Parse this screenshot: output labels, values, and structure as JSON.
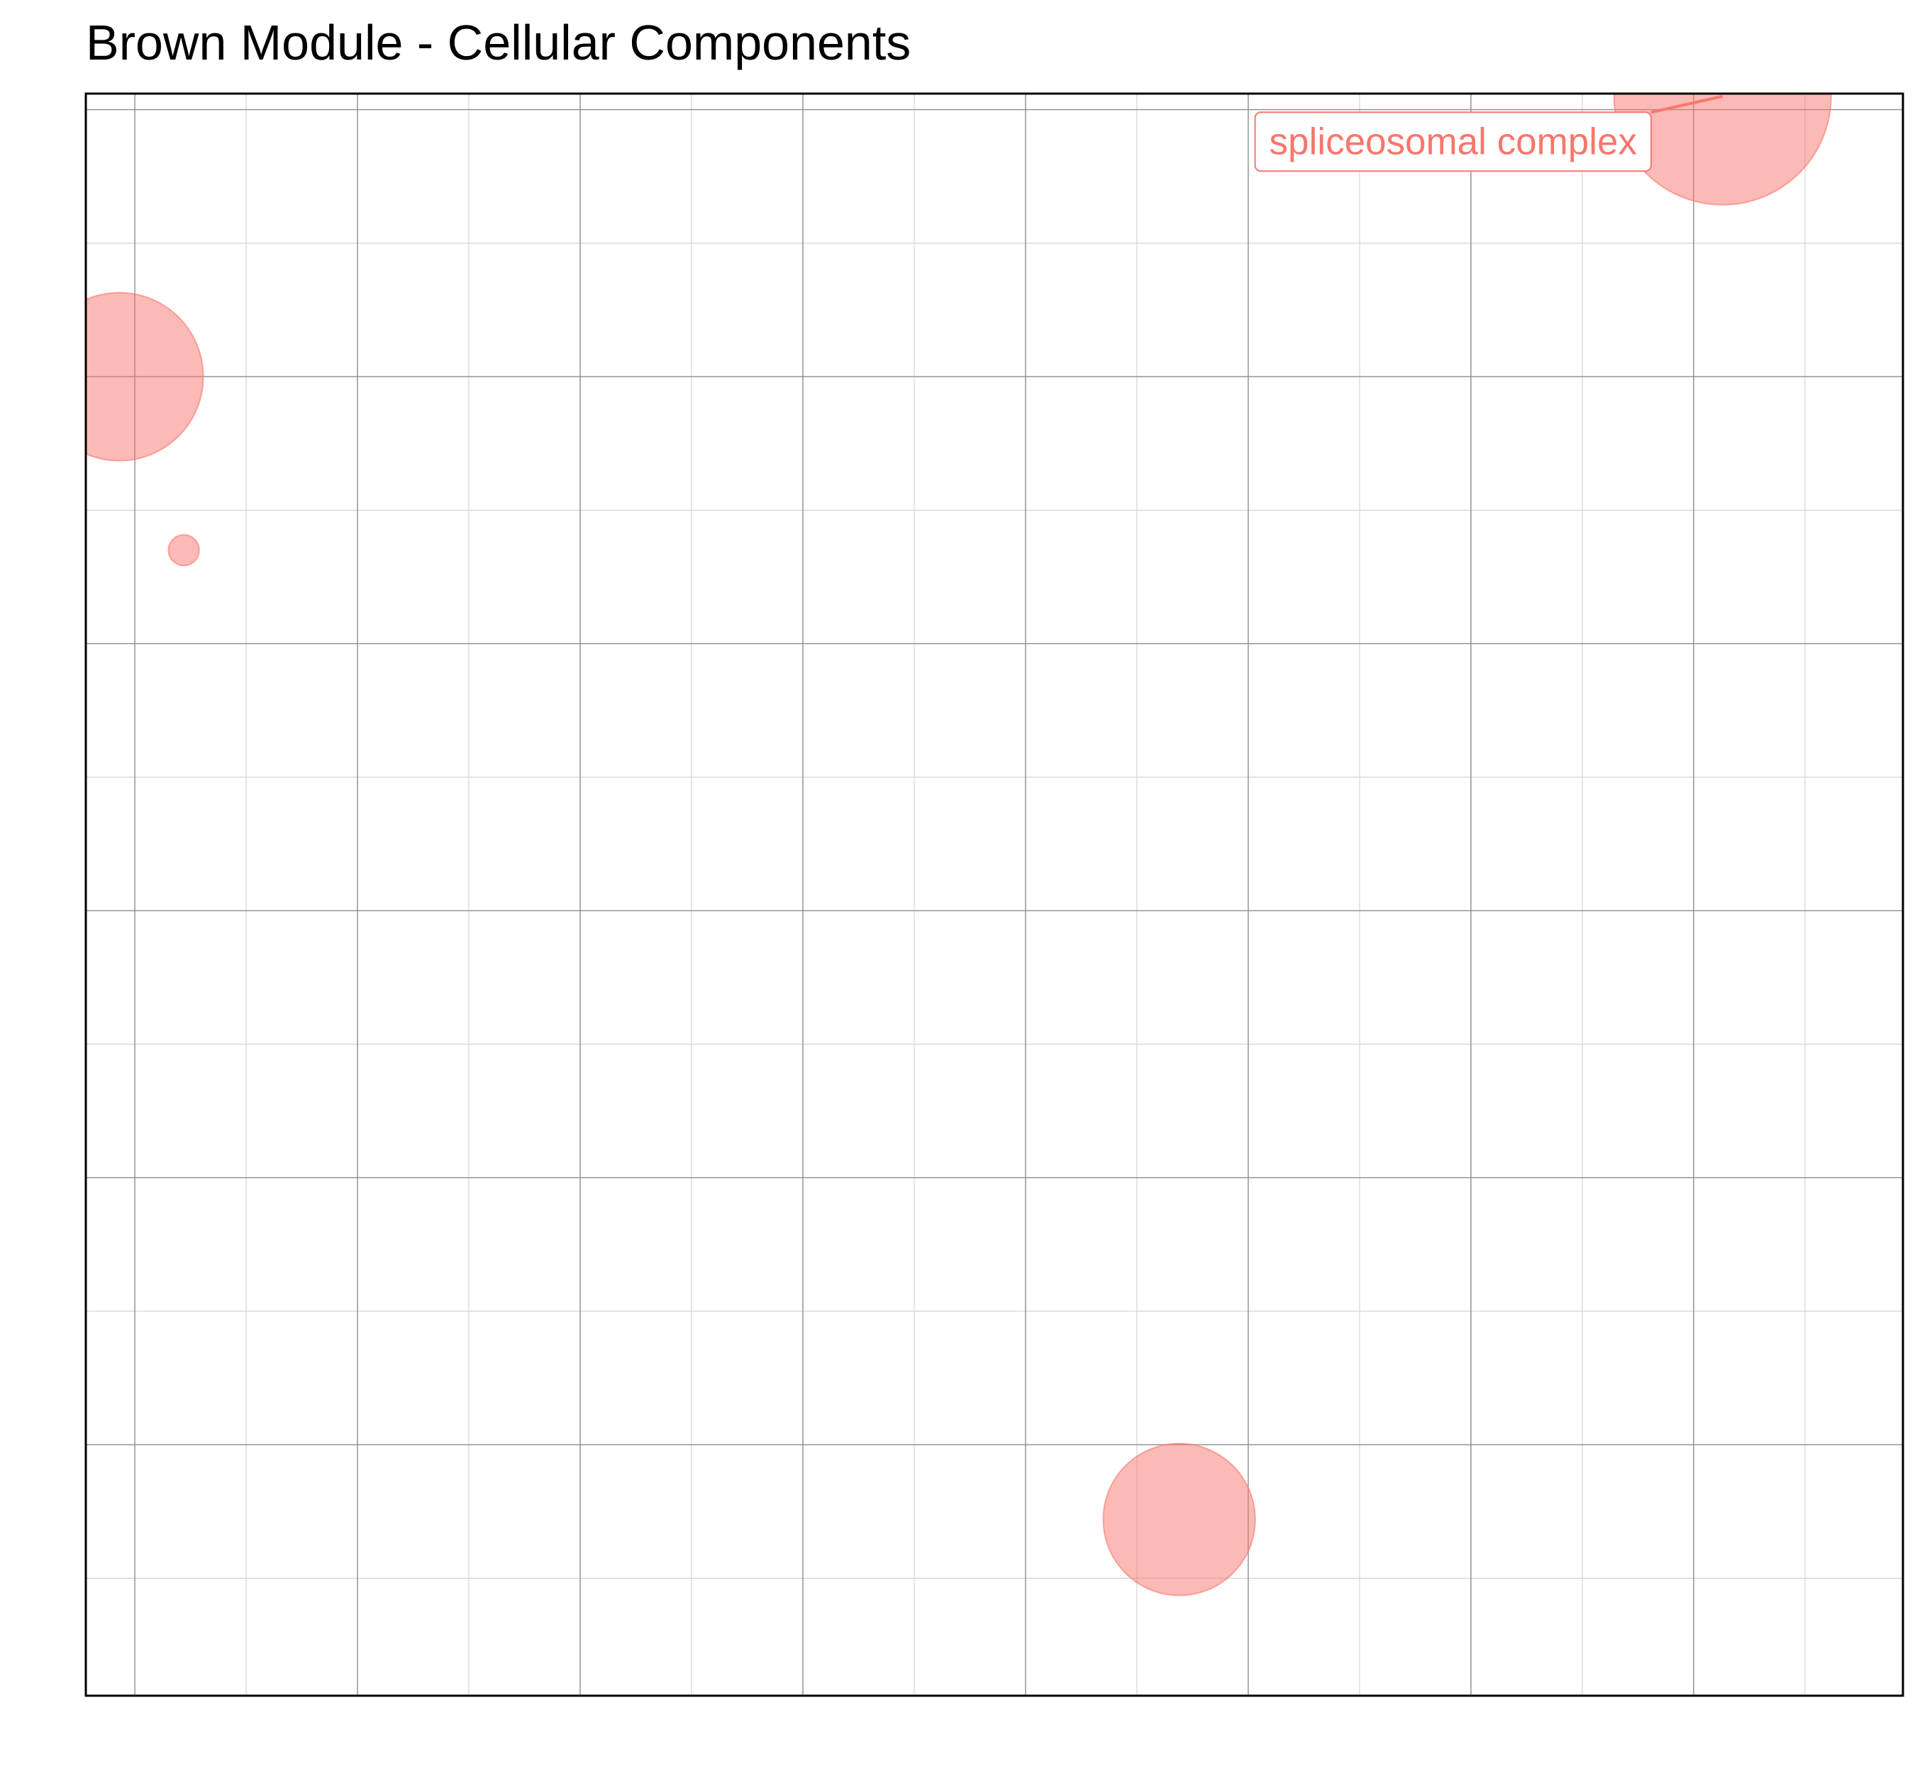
{
  "chart_data": {
    "type": "scatter",
    "title": "Brown Module - Cellular Components",
    "xlabel": "",
    "ylabel": "",
    "xlim": [
      -0.22,
      7.94
    ],
    "ylim": [
      -0.94,
      5.06
    ],
    "grid": true,
    "legend": "none",
    "points": [
      {
        "x": 7.13,
        "y": 5.05,
        "size": 1.0,
        "label": "spliceosomal complex",
        "label_x": 5.92,
        "label_y": 4.88
      },
      {
        "x": -0.07,
        "y": 4.0,
        "size": 0.6
      },
      {
        "x": 0.22,
        "y": 3.35,
        "size": 0.02
      },
      {
        "x": 4.69,
        "y": -0.28,
        "size": 0.49
      }
    ]
  },
  "colors": {
    "point_fill": "#f8766d",
    "point_stroke": "#f8766d",
    "label_text": "#f8766d",
    "grid_major": "#8c8c8c",
    "grid_minor": "#d4d4d4",
    "panel_border": "#000000"
  }
}
